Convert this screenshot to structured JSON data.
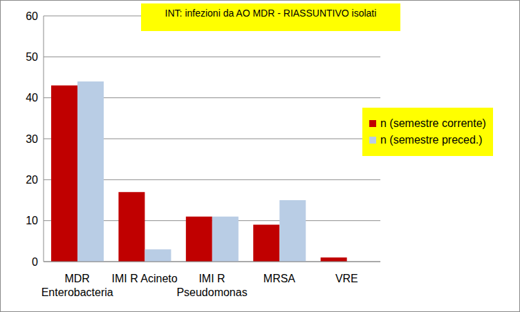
{
  "chart_data": {
    "type": "bar",
    "title": "INT: infezioni da AO MDR - RIASSUNTIVO isolati",
    "categories": [
      "MDR Enterobacteria",
      "IMI R Acineto",
      "IMI R Pseudomonas",
      "MRSA",
      "VRE"
    ],
    "series": [
      {
        "name": "n (semestre corrente)",
        "color": "#c00000",
        "values": [
          43,
          17,
          11,
          9,
          1
        ]
      },
      {
        "name": "n (semestre preced.)",
        "color": "#b9cde5",
        "values": [
          44,
          3,
          11,
          15,
          0
        ]
      }
    ],
    "ylim": [
      0,
      60
    ],
    "yticks": [
      0,
      10,
      20,
      30,
      40,
      50,
      60
    ],
    "grid": true,
    "legend": "right"
  }
}
